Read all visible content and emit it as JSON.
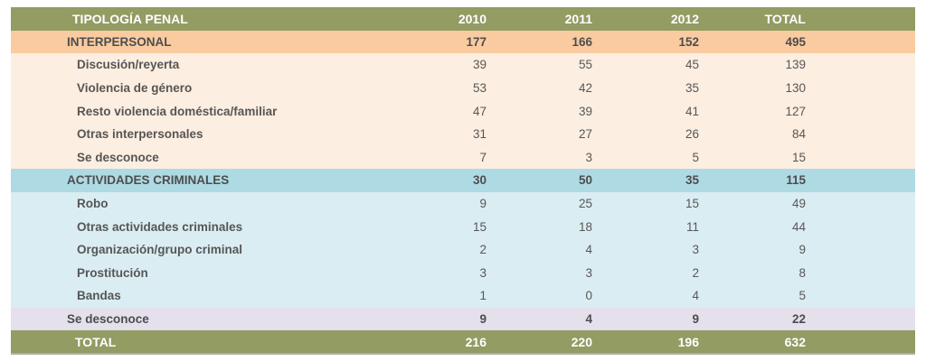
{
  "title": "TIPOLOGÍA PENAL",
  "colors": {
    "olive": "#929C63",
    "oliveText": "#FFFFFF",
    "orangeSection": "#FACBA0",
    "orangeSub": "#FCEEE0",
    "blueSection": "#AEDAE4",
    "blueSub": "#DAEDF2",
    "lavender": "#E4E0EC",
    "darkText": "#565656"
  },
  "table": {
    "columns": [
      "TIPOLOGÍA PENAL",
      "2010",
      "2011",
      "2012",
      "TOTAL"
    ],
    "rows": [
      {
        "label": "INTERPERSONAL",
        "style": "section-orange",
        "values": [
          177,
          166,
          152,
          495
        ]
      },
      {
        "label": "Discusión/reyerta",
        "style": "sub-orange",
        "values": [
          39,
          55,
          45,
          139
        ]
      },
      {
        "label": "Violencia de género",
        "style": "sub-orange",
        "values": [
          53,
          42,
          35,
          130
        ]
      },
      {
        "label": "Resto violencia doméstica/familiar",
        "style": "sub-orange",
        "values": [
          47,
          39,
          41,
          127
        ]
      },
      {
        "label": "Otras interpersonales",
        "style": "sub-orange",
        "values": [
          31,
          27,
          26,
          84
        ]
      },
      {
        "label": "Se desconoce",
        "style": "sub-orange",
        "values": [
          7,
          3,
          5,
          15
        ]
      },
      {
        "label": "ACTIVIDADES CRIMINALES",
        "style": "section-blue",
        "values": [
          30,
          50,
          35,
          115
        ]
      },
      {
        "label": "Robo",
        "style": "sub-blue",
        "values": [
          9,
          25,
          15,
          49
        ]
      },
      {
        "label": "Otras actividades criminales",
        "style": "sub-blue",
        "values": [
          15,
          18,
          11,
          44
        ]
      },
      {
        "label": "Organización/grupo criminal",
        "style": "sub-blue",
        "values": [
          2,
          4,
          3,
          9
        ]
      },
      {
        "label": "Prostitución",
        "style": "sub-blue",
        "values": [
          3,
          3,
          2,
          8
        ]
      },
      {
        "label": "Bandas",
        "style": "sub-blue",
        "values": [
          1,
          0,
          4,
          5
        ]
      },
      {
        "label": "Se desconoce",
        "style": "section-lavender",
        "values": [
          9,
          4,
          9,
          22
        ]
      },
      {
        "label": "TOTAL",
        "style": "grand-total",
        "values": [
          216,
          220,
          196,
          632
        ]
      }
    ]
  },
  "chart_data": {
    "type": "table",
    "title": "TIPOLOGÍA PENAL",
    "categories": [
      "2010",
      "2011",
      "2012",
      "TOTAL"
    ],
    "series": [
      {
        "name": "INTERPERSONAL",
        "values": [
          177,
          166,
          152,
          495
        ]
      },
      {
        "name": "Discusión/reyerta",
        "values": [
          39,
          55,
          45,
          139
        ]
      },
      {
        "name": "Violencia de género",
        "values": [
          53,
          42,
          35,
          130
        ]
      },
      {
        "name": "Resto violencia doméstica/familiar",
        "values": [
          47,
          39,
          41,
          127
        ]
      },
      {
        "name": "Otras interpersonales",
        "values": [
          31,
          27,
          26,
          84
        ]
      },
      {
        "name": "Se desconoce (interpersonal)",
        "values": [
          7,
          3,
          5,
          15
        ]
      },
      {
        "name": "ACTIVIDADES CRIMINALES",
        "values": [
          30,
          50,
          35,
          115
        ]
      },
      {
        "name": "Robo",
        "values": [
          9,
          25,
          15,
          49
        ]
      },
      {
        "name": "Otras actividades criminales",
        "values": [
          15,
          18,
          11,
          44
        ]
      },
      {
        "name": "Organización/grupo criminal",
        "values": [
          2,
          4,
          3,
          9
        ]
      },
      {
        "name": "Prostitución",
        "values": [
          3,
          3,
          2,
          8
        ]
      },
      {
        "name": "Bandas",
        "values": [
          1,
          0,
          4,
          5
        ]
      },
      {
        "name": "Se desconoce",
        "values": [
          9,
          4,
          9,
          22
        ]
      },
      {
        "name": "TOTAL",
        "values": [
          216,
          220,
          196,
          632
        ]
      }
    ]
  }
}
